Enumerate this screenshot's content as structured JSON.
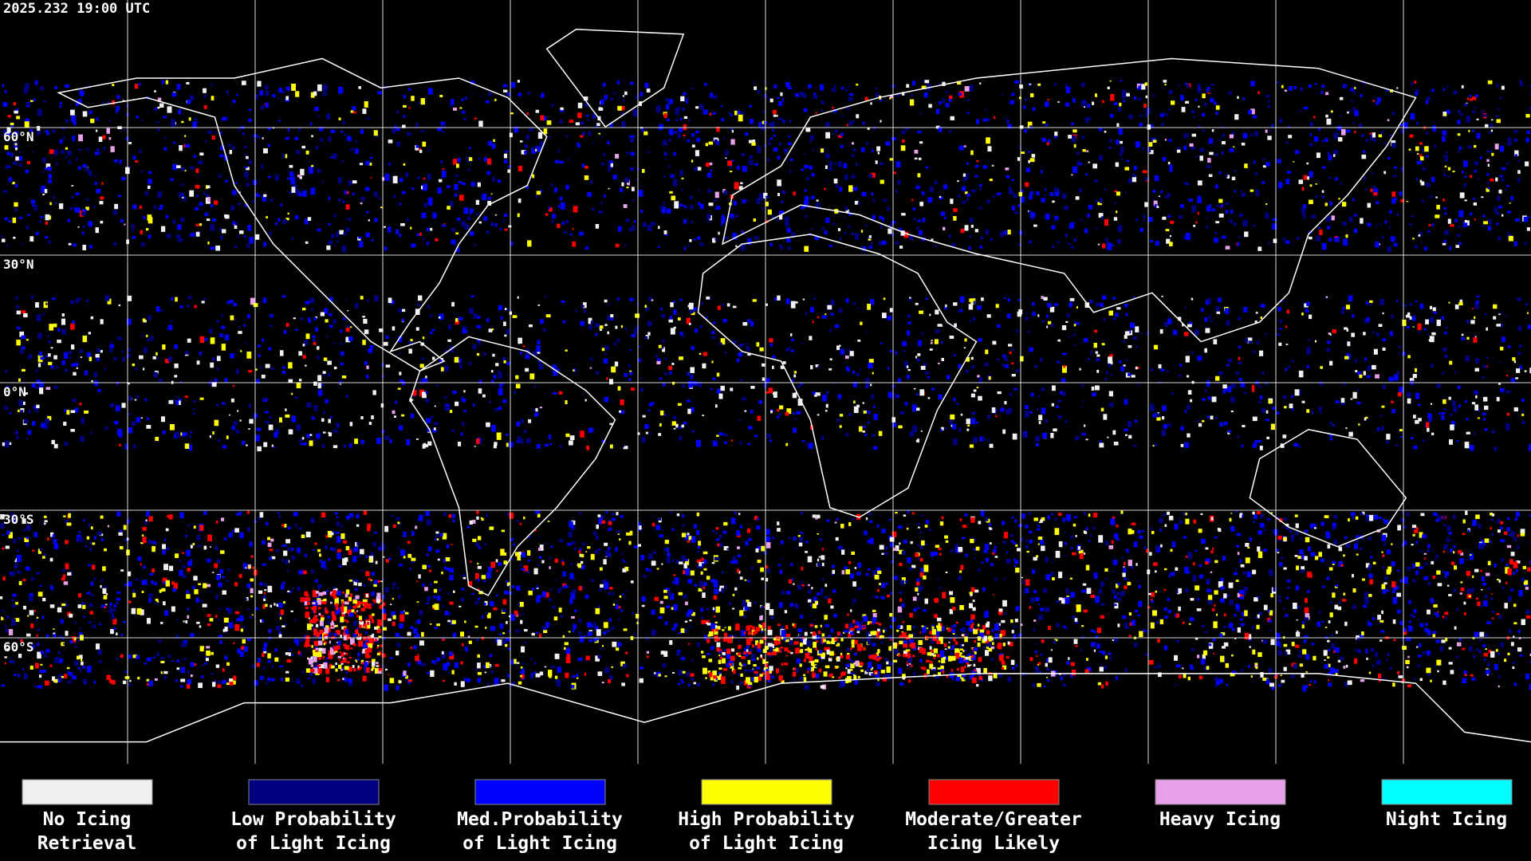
{
  "timestamp": "2025.232 19:00 UTC",
  "latitude_labels": [
    "60°N",
    "30°N",
    "0°N",
    "30°S",
    "60°S"
  ],
  "legend": [
    {
      "label_lines": [
        "No Icing",
        "Retrieval"
      ],
      "color": "#f0f0f0"
    },
    {
      "label_lines": [
        "Low Probability",
        "of Light Icing"
      ],
      "color": "#000080"
    },
    {
      "label_lines": [
        "Med.Probability",
        "of Light Icing"
      ],
      "color": "#0000ff"
    },
    {
      "label_lines": [
        "High Probability",
        "of Light Icing"
      ],
      "color": "#ffff00"
    },
    {
      "label_lines": [
        "Moderate/Greater",
        "Icing Likely"
      ],
      "color": "#ff0000"
    },
    {
      "label_lines": [
        "Heavy Icing"
      ],
      "color": "#e8a0e8"
    },
    {
      "label_lines": [
        "Night Icing"
      ],
      "color": "#00ffff"
    }
  ]
}
